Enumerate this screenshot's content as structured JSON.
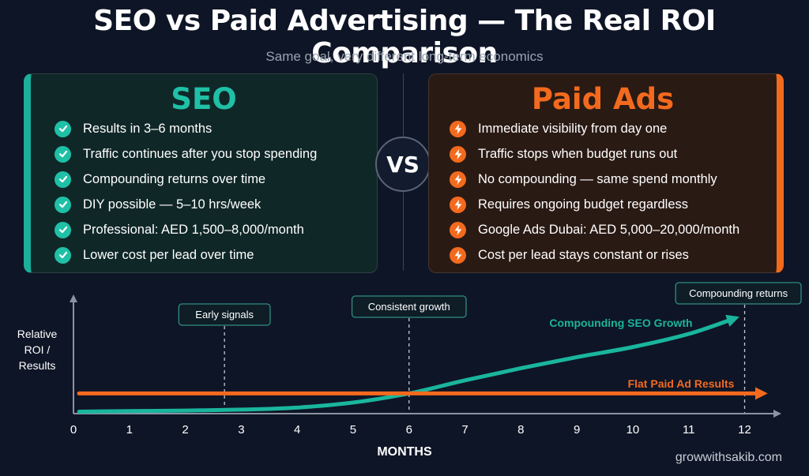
{
  "title": "SEO vs Paid Advertising — The Real ROI Comparison",
  "subtitle": "Same goal, very different long-term economics",
  "seo_panel": {
    "heading": "SEO",
    "icon": "check-icon",
    "accent": "#1fc0a6",
    "items": [
      "Results in 3–6 months",
      "Traffic continues after you stop spending",
      "Compounding returns over time",
      "DIY possible — 5–10 hrs/week",
      "Professional: AED 1,500–8,000/month",
      "Lower cost per lead over time"
    ]
  },
  "vs_label": "VS",
  "paid_panel": {
    "heading": "Paid Ads",
    "icon": "lightning-icon",
    "accent": "#f36a1e",
    "items": [
      "Immediate visibility from day one",
      "Traffic stops when budget runs out",
      "No compounding — same spend monthly",
      "Requires ongoing budget regardless",
      "Google Ads Dubai: AED 5,000–20,000/month",
      "Cost per lead stays constant or rises"
    ]
  },
  "chart_data": {
    "type": "line",
    "ylabel": "Relative ROI / Results",
    "ylabel_lines": [
      "Relative",
      "ROI /",
      "Results"
    ],
    "xlabel": "MONTHS",
    "x": [
      0,
      1,
      2,
      3,
      4,
      5,
      6,
      7,
      8,
      9,
      10,
      11,
      12
    ],
    "xlim": [
      0,
      12.6
    ],
    "ylim": [
      0,
      1.15
    ],
    "grid": false,
    "series": [
      {
        "name": "Compounding SEO Growth",
        "color": "#1ab59d",
        "points": [
          [
            0.1,
            0.02
          ],
          [
            1,
            0.025
          ],
          [
            2,
            0.03
          ],
          [
            3,
            0.04
          ],
          [
            4,
            0.06
          ],
          [
            5,
            0.11
          ],
          [
            6,
            0.2
          ],
          [
            7,
            0.33
          ],
          [
            8,
            0.45
          ],
          [
            9,
            0.56
          ],
          [
            10,
            0.66
          ],
          [
            11,
            0.79
          ],
          [
            11.8,
            0.94
          ]
        ]
      },
      {
        "name": "Flat Paid Ad Results",
        "color": "#f36a1e",
        "points": [
          [
            0.1,
            0.2
          ],
          [
            12.3,
            0.2
          ]
        ]
      }
    ],
    "annotations": [
      {
        "label": "Early signals",
        "x": 2.7
      },
      {
        "label": "Consistent growth",
        "x": 6
      },
      {
        "label": "Compounding returns",
        "x": 12
      }
    ]
  },
  "footer": "growwithsakib.com"
}
